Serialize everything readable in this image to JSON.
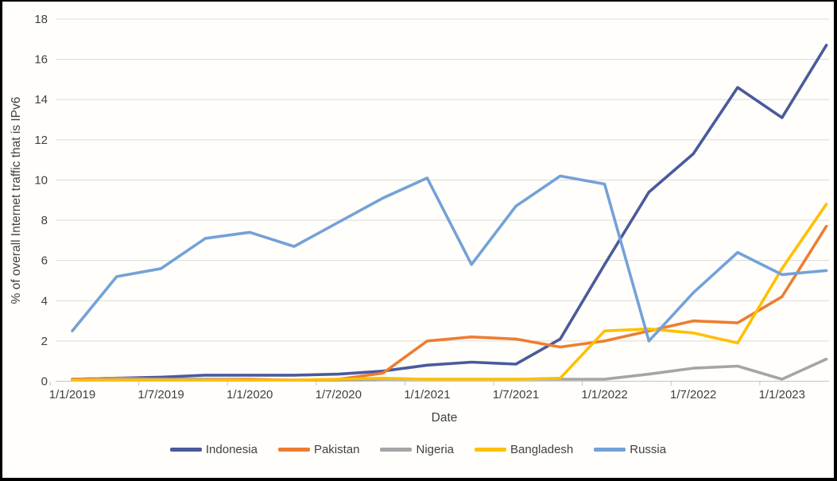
{
  "figure": {
    "y_axis_title": "% of overall Internet traffic that is IPv6",
    "x_axis_title": "Date"
  },
  "colors": {
    "text": "#404040",
    "gridline": "#dcdad8",
    "axis_line": "#c6c4c2",
    "background": "#fffefb",
    "frame_border": "#000000"
  },
  "chart_data": {
    "type": "line",
    "title": "",
    "xlabel": "Date",
    "ylabel": "% of overall Internet traffic that is IPv6",
    "ylim": [
      0,
      18
    ],
    "ytick_step": 2,
    "grid": "horizontal",
    "legend_position": "bottom",
    "y_tick_labels": [
      "0",
      "2",
      "4",
      "6",
      "8",
      "10",
      "12",
      "14",
      "16",
      "18"
    ],
    "categories": [
      "1/1/2019",
      "1/4/2019",
      "1/7/2019",
      "1/10/2019",
      "1/1/2020",
      "1/4/2020",
      "1/7/2020",
      "1/10/2020",
      "1/1/2021",
      "1/4/2021",
      "1/7/2021",
      "1/10/2021",
      "1/1/2022",
      "1/4/2022",
      "1/7/2022",
      "1/10/2022",
      "1/1/2023",
      "1/4/2023"
    ],
    "x_tick_labels": [
      "1/1/2019",
      "1/7/2019",
      "1/1/2020",
      "1/7/2020",
      "1/1/2021",
      "1/7/2021",
      "1/1/2022",
      "1/7/2022",
      "1/1/2023"
    ],
    "series": [
      {
        "name": "Indonesia",
        "color": "#4a5a9c",
        "values": [
          0.1,
          0.15,
          0.2,
          0.3,
          0.3,
          0.3,
          0.35,
          0.5,
          0.8,
          0.95,
          0.85,
          2.1,
          5.8,
          9.4,
          11.3,
          14.6,
          13.1,
          16.7
        ]
      },
      {
        "name": "Pakistan",
        "color": "#ed7d31",
        "values": [
          0.1,
          0.15,
          0.1,
          0.1,
          0.1,
          0.05,
          0.1,
          0.4,
          2.0,
          2.2,
          2.1,
          1.7,
          2.0,
          2.5,
          3.0,
          2.9,
          4.2,
          7.7
        ]
      },
      {
        "name": "Nigeria",
        "color": "#a5a5a5",
        "values": [
          0.05,
          0.1,
          0.1,
          0.1,
          0.05,
          0.05,
          0.05,
          0.1,
          0.1,
          0.1,
          0.1,
          0.1,
          0.1,
          0.35,
          0.65,
          0.75,
          0.1,
          1.1
        ]
      },
      {
        "name": "Bangladesh",
        "color": "#ffc000",
        "values": [
          0.05,
          0.05,
          0.05,
          0.05,
          0.05,
          0.05,
          0.1,
          0.15,
          0.1,
          0.1,
          0.1,
          0.15,
          2.5,
          2.6,
          2.4,
          1.9,
          5.6,
          8.8
        ]
      },
      {
        "name": "Russia",
        "color": "#74a1d8",
        "values": [
          2.5,
          5.2,
          5.6,
          7.1,
          7.4,
          6.7,
          7.9,
          9.1,
          10.1,
          5.8,
          8.7,
          10.2,
          9.8,
          2.0,
          4.4,
          6.4,
          5.3,
          5.5
        ]
      }
    ]
  }
}
